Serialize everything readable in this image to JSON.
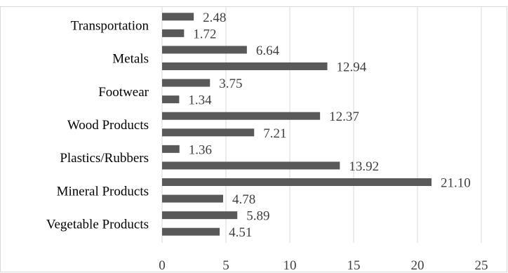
{
  "chart_data": {
    "type": "bar",
    "orientation": "horizontal",
    "categories": [
      "Vegetable Products",
      "Mineral Products",
      "Plastics/Rubbers",
      "Wood Products",
      "Footwear",
      "Metals",
      "Transportation"
    ],
    "bars": [
      {
        "category_index": 0,
        "value": 4.51,
        "label": "4.51"
      },
      {
        "category_index": 0,
        "value": 5.89,
        "label": "5.89"
      },
      {
        "category_index": 1,
        "value": 4.78,
        "label": "4.78"
      },
      {
        "category_index": 1,
        "value": 21.1,
        "label": "21.10"
      },
      {
        "category_index": 2,
        "value": 13.92,
        "label": "13.92"
      },
      {
        "category_index": 2,
        "value": 1.36,
        "label": "1.36"
      },
      {
        "category_index": 3,
        "value": 7.21,
        "label": "7.21"
      },
      {
        "category_index": 3,
        "value": 12.37,
        "label": "12.37"
      },
      {
        "category_index": 4,
        "value": 1.34,
        "label": "1.34"
      },
      {
        "category_index": 4,
        "value": 3.75,
        "label": "3.75"
      },
      {
        "category_index": 5,
        "value": 12.94,
        "label": "12.94"
      },
      {
        "category_index": 5,
        "value": 6.64,
        "label": "6.64"
      },
      {
        "category_index": 6,
        "value": 1.72,
        "label": "1.72"
      },
      {
        "category_index": 6,
        "value": 2.48,
        "label": "2.48"
      }
    ],
    "x_ticks": [
      0,
      5,
      10,
      15,
      20,
      25
    ],
    "xlim": [
      0,
      25
    ],
    "title": "",
    "xlabel": "",
    "ylabel": "",
    "grid": true,
    "legend": "none",
    "bar_color": "#595959"
  }
}
